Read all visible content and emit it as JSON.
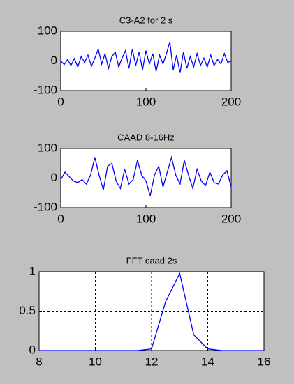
{
  "chart_data": [
    {
      "type": "line",
      "title": "C3-A2    for 2 s",
      "color": "#0000ff",
      "grid": false,
      "x": [
        0,
        4,
        8,
        12,
        16,
        20,
        24,
        28,
        32,
        36,
        40,
        44,
        48,
        52,
        56,
        60,
        64,
        68,
        72,
        76,
        80,
        84,
        88,
        92,
        96,
        100,
        104,
        108,
        112,
        116,
        120,
        124,
        128,
        132,
        136,
        140,
        144,
        148,
        152,
        156,
        160,
        164,
        168,
        172,
        176,
        180,
        184,
        188,
        192,
        196,
        200
      ],
      "values": [
        0,
        -12,
        5,
        -15,
        8,
        -20,
        15,
        -5,
        20,
        -18,
        10,
        40,
        -10,
        25,
        -25,
        15,
        30,
        -20,
        10,
        35,
        -25,
        40,
        -15,
        30,
        -30,
        35,
        -10,
        25,
        -35,
        20,
        -10,
        25,
        65,
        -30,
        20,
        -40,
        30,
        -25,
        15,
        -20,
        25,
        -15,
        10,
        -20,
        20,
        -15,
        5,
        -10,
        25,
        -5,
        0
      ],
      "xlim": [
        0,
        200
      ],
      "xticks": [
        0,
        100,
        200
      ],
      "ylim": [
        -100,
        100
      ],
      "yticks": [
        -100,
        0,
        100
      ]
    },
    {
      "type": "line",
      "title": "CAAD      8-16Hz",
      "color": "#0000ff",
      "grid": false,
      "x": [
        0,
        5,
        10,
        15,
        20,
        25,
        30,
        35,
        40,
        45,
        50,
        55,
        60,
        65,
        70,
        75,
        80,
        85,
        90,
        95,
        100,
        105,
        110,
        115,
        120,
        125,
        130,
        135,
        140,
        145,
        150,
        155,
        160,
        165,
        170,
        175,
        180,
        185,
        190,
        195,
        200
      ],
      "values": [
        -5,
        20,
        5,
        -10,
        -15,
        -5,
        -20,
        10,
        70,
        10,
        -40,
        40,
        50,
        -10,
        -35,
        30,
        -20,
        -5,
        60,
        10,
        -10,
        -60,
        10,
        40,
        -30,
        20,
        70,
        10,
        -20,
        60,
        10,
        -35,
        30,
        -10,
        -25,
        20,
        -15,
        -20,
        10,
        25,
        -30
      ],
      "xlim": [
        0,
        200
      ],
      "xticks": [
        0,
        100,
        200
      ],
      "ylim": [
        -100,
        100
      ],
      "yticks": [
        -100,
        0,
        100
      ]
    },
    {
      "type": "line",
      "title": "FFT caad 2s",
      "color": "#0000ff",
      "grid": true,
      "x": [
        8,
        8.5,
        9,
        9.5,
        10,
        10.5,
        11,
        11.5,
        12,
        12.5,
        13,
        13.5,
        14,
        14.5,
        15,
        15.5,
        16
      ],
      "values": [
        0,
        0,
        0,
        0,
        0,
        0,
        0,
        0,
        0.02,
        0.62,
        0.98,
        0.2,
        0.02,
        0,
        0,
        0,
        0
      ],
      "xlim": [
        8,
        16
      ],
      "xticks": [
        8,
        10,
        12,
        14,
        16
      ],
      "ylim": [
        0,
        1
      ],
      "yticks": [
        0,
        0.5,
        1
      ]
    }
  ]
}
